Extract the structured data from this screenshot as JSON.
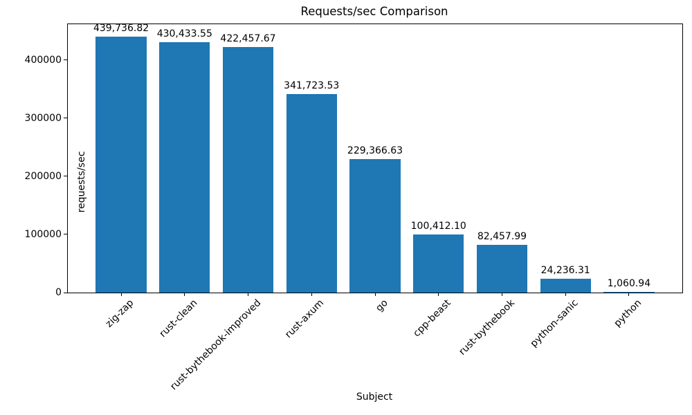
{
  "chart_data": {
    "type": "bar",
    "title": "Requests/sec Comparison",
    "xlabel": "Subject",
    "ylabel": "requests/sec",
    "categories": [
      "zig-zap",
      "rust-clean",
      "rust-bythebook-improved",
      "rust-axum",
      "go",
      "cpp-beast",
      "rust-bythebook",
      "python-sanic",
      "python"
    ],
    "values": [
      439736.82,
      430433.55,
      422457.67,
      341723.53,
      229366.63,
      100412.1,
      82457.99,
      24236.31,
      1060.94
    ],
    "value_labels": [
      "439,736.82",
      "430,433.55",
      "422,457.67",
      "341,723.53",
      "229,366.63",
      "100,412.10",
      "82,457.99",
      "24,236.31",
      "1,060.94"
    ],
    "yticks": [
      0,
      100000,
      200000,
      300000,
      400000
    ],
    "ytick_labels": [
      "0",
      "100000",
      "200000",
      "300000",
      "400000"
    ],
    "ylim": [
      0,
      461724
    ],
    "xlim": [
      -0.84,
      8.84
    ],
    "bar_width": 0.8,
    "bar_color": "#1f77b4",
    "grid": false,
    "legend_position": "none"
  }
}
